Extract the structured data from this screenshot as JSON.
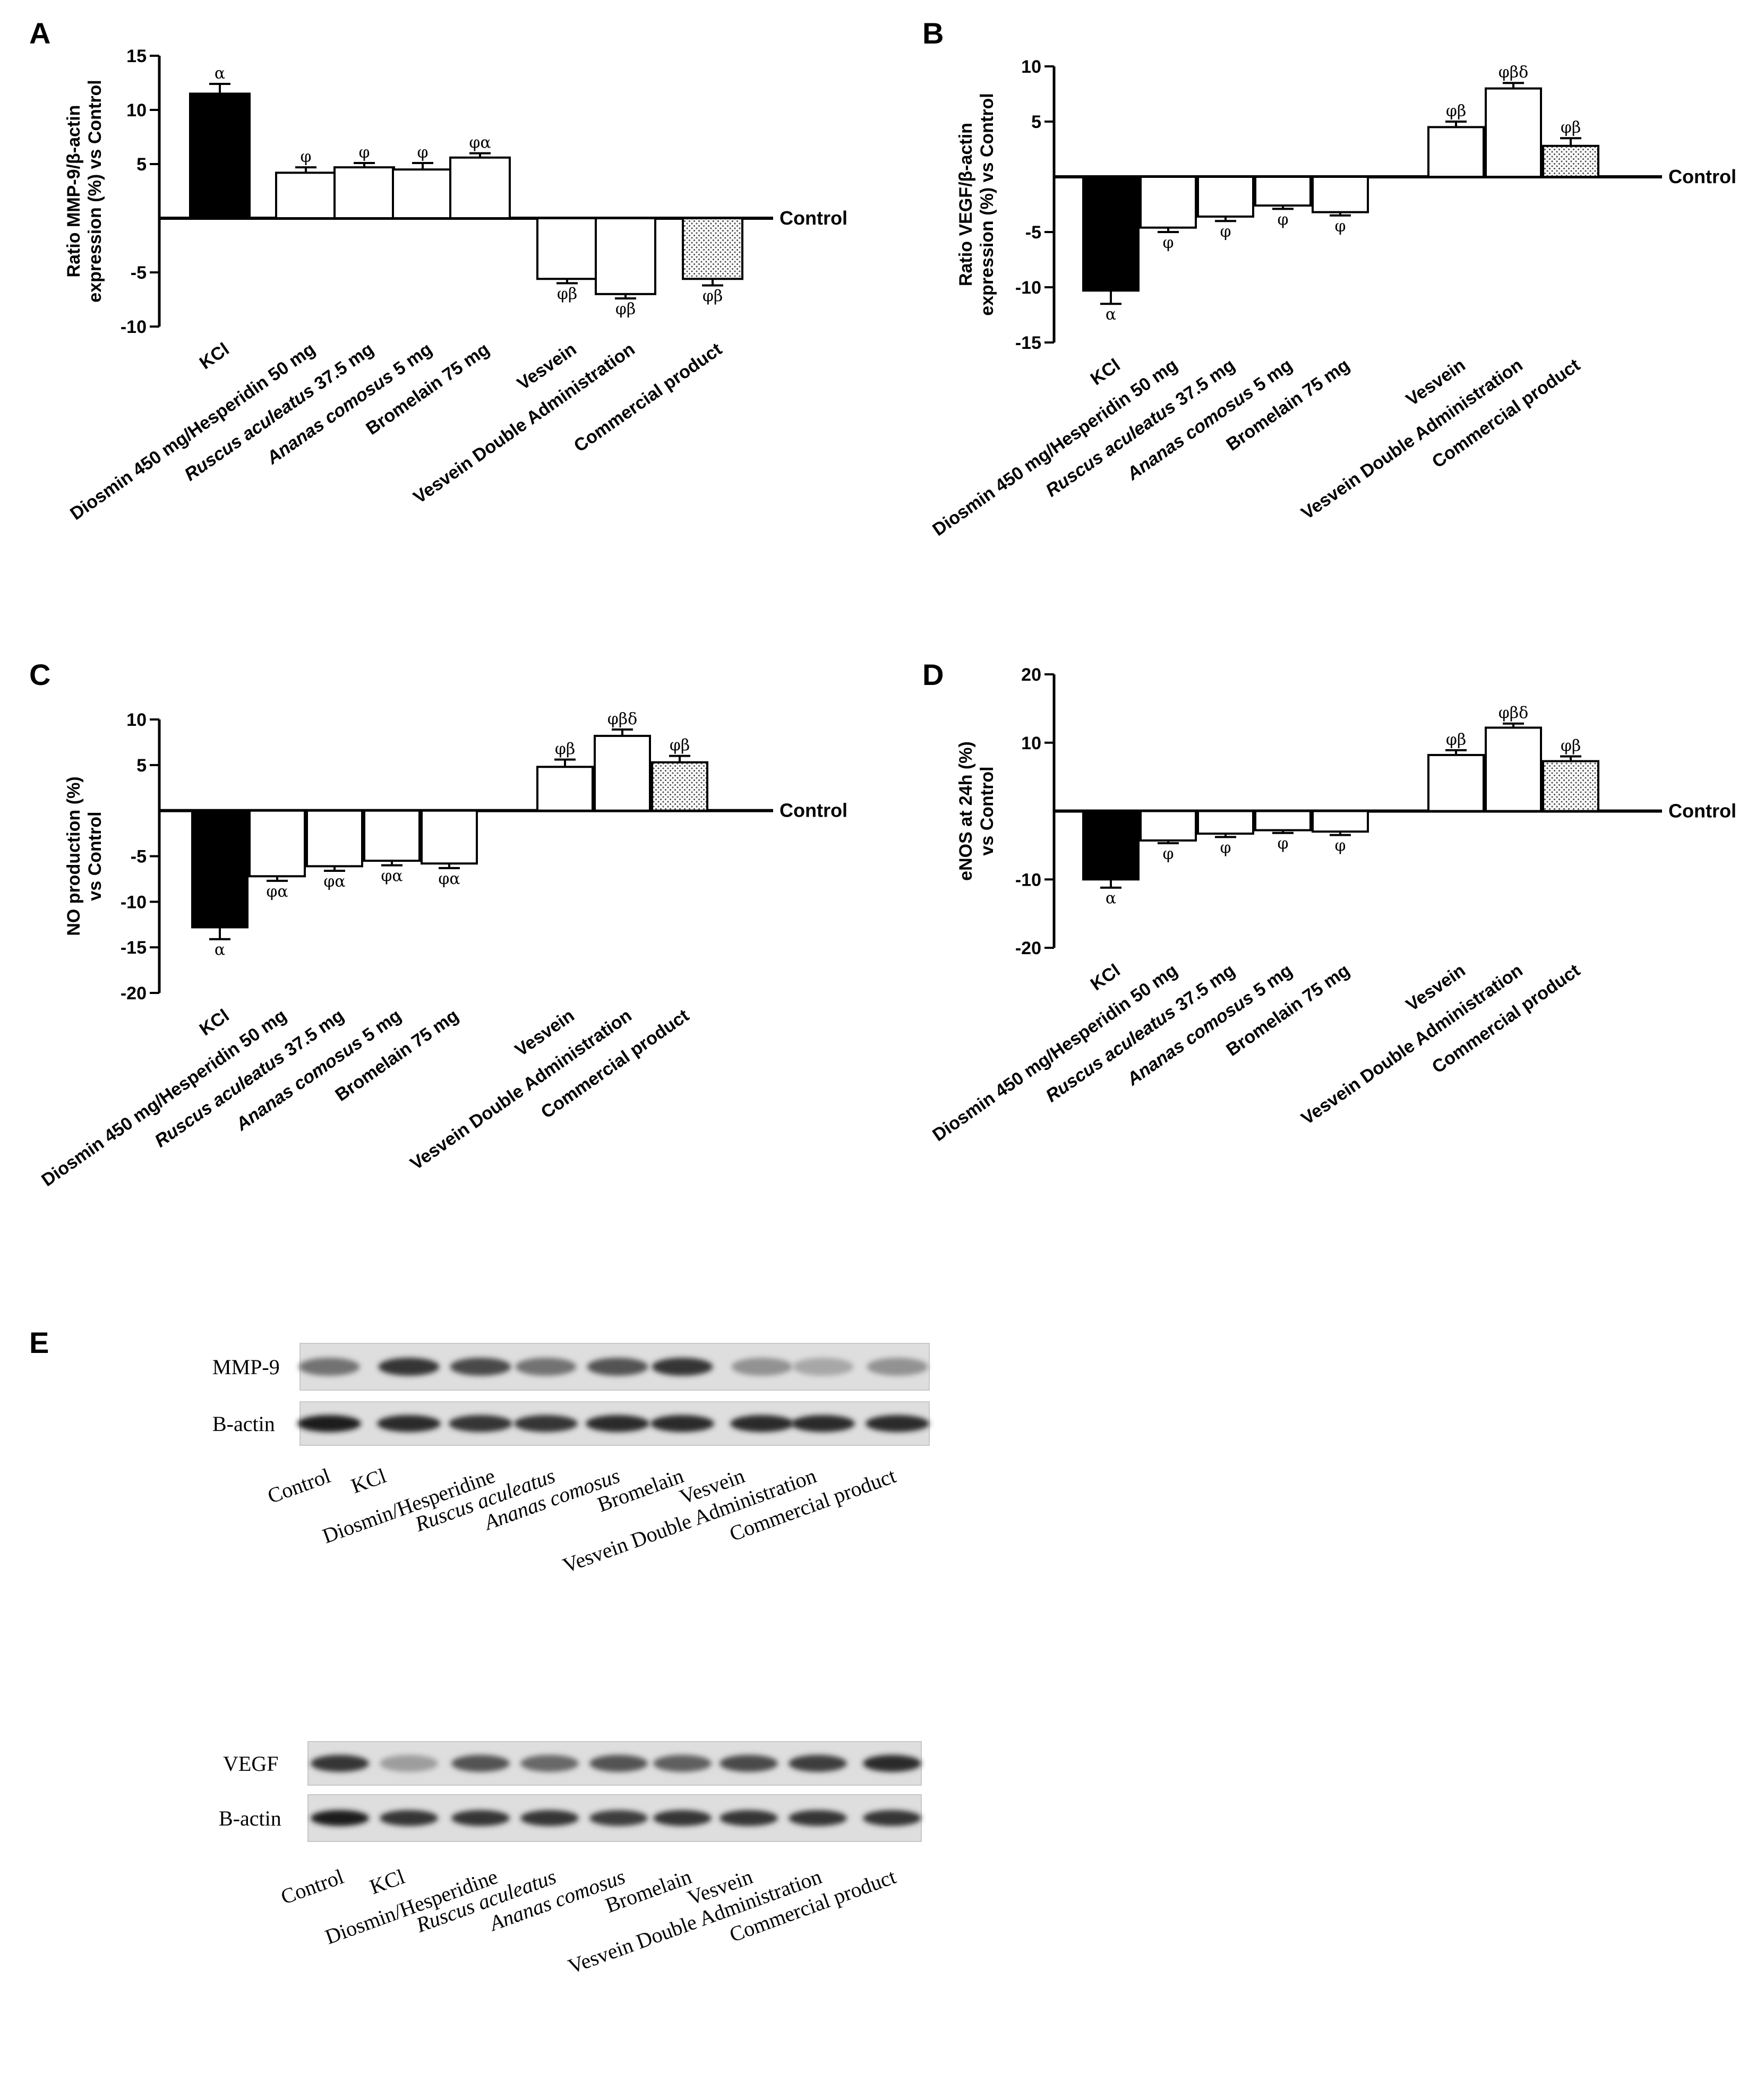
{
  "categories": [
    {
      "text": "KCl",
      "italic": false
    },
    {
      "text": "Diosmin 450 mg/Hesperidin 50 mg",
      "italic": false
    },
    {
      "italic_part": "Ruscus aculeatus",
      "rest": " 37.5 mg"
    },
    {
      "italic_part": "Ananas comosus",
      "rest": " 5 mg"
    },
    {
      "text": "Bromelain 75 mg",
      "italic": false
    },
    {
      "text": "Vesvein",
      "italic": false
    },
    {
      "text": "Vesvein Double Administration",
      "italic": false
    },
    {
      "text": "Commercial product",
      "italic": false
    }
  ],
  "zero_label": "Control",
  "bar_styles": [
    "black",
    "white",
    "white",
    "white",
    "white",
    "white",
    "white",
    "dotted"
  ],
  "colors": {
    "bar_edge": "#000000",
    "black_fill": "#000000",
    "white_fill": "#ffffff",
    "dot": "#555555"
  },
  "chart_data": [
    {
      "panel": "A",
      "type": "bar",
      "ylabel_lines": [
        "Ratio MMP-9/β-actin",
        "expression (%) vs Control"
      ],
      "ylim": [
        -10,
        15
      ],
      "yticks": [
        15,
        10,
        5,
        -5,
        -10
      ],
      "values": [
        11.5,
        4.2,
        4.7,
        4.5,
        5.6,
        -5.6,
        -7.0,
        -5.6
      ],
      "errors": [
        0.9,
        0.5,
        0.4,
        0.6,
        0.4,
        0.4,
        0.4,
        0.6
      ],
      "significance": [
        "α",
        "φ",
        "φ",
        "φ",
        "φα",
        "φβ",
        "φβ",
        "φβ"
      ]
    },
    {
      "panel": "B",
      "type": "bar",
      "ylabel_lines": [
        "Ratio VEGF/β-actin",
        "expression (%) vs Control"
      ],
      "ylim": [
        -15,
        10
      ],
      "yticks": [
        10,
        5,
        -5,
        -10,
        -15
      ],
      "values": [
        -10.3,
        -4.6,
        -3.6,
        -2.6,
        -3.2,
        4.5,
        8.0,
        2.8
      ],
      "errors": [
        1.2,
        0.4,
        0.4,
        0.3,
        0.3,
        0.5,
        0.5,
        0.7
      ],
      "significance": [
        "α",
        "φ",
        "φ",
        "φ",
        "φ",
        "φβ",
        "φβδ",
        "φβ"
      ]
    },
    {
      "panel": "C",
      "type": "bar",
      "ylabel_lines": [
        "NO production (%)",
        "vs Control"
      ],
      "ylim": [
        -20,
        10
      ],
      "yticks": [
        10,
        5,
        -5,
        -10,
        -15,
        -20
      ],
      "values": [
        -12.8,
        -7.2,
        -6.1,
        -5.5,
        -5.8,
        4.8,
        8.2,
        5.3
      ],
      "errors": [
        1.3,
        0.5,
        0.5,
        0.5,
        0.5,
        0.8,
        0.7,
        0.7
      ],
      "significance": [
        "α",
        "φα",
        "φα",
        "φα",
        "φα",
        "φβ",
        "φβδ",
        "φβ"
      ]
    },
    {
      "panel": "D",
      "type": "bar",
      "ylabel_lines": [
        "eNOS at 24h (%)",
        "vs Control"
      ],
      "ylim": [
        -20,
        20
      ],
      "yticks": [
        20,
        10,
        -10,
        -20
      ],
      "values": [
        -10.0,
        -4.3,
        -3.3,
        -2.8,
        -3.0,
        8.2,
        12.2,
        7.3
      ],
      "errors": [
        1.2,
        0.4,
        0.5,
        0.4,
        0.5,
        0.7,
        0.6,
        0.7
      ],
      "significance": [
        "α",
        "φ",
        "φ",
        "φ",
        "φ",
        "φβ",
        "φβδ",
        "φβ"
      ]
    }
  ],
  "panel_e": {
    "letter": "E",
    "lanes": [
      {
        "text": "Control",
        "italic": false
      },
      {
        "text": "KCl",
        "italic": false
      },
      {
        "text": "Diosmin/Hesperidine",
        "italic": false
      },
      {
        "text": "Ruscus aculeatus",
        "italic": true
      },
      {
        "text": "Ananas comosus",
        "italic": true
      },
      {
        "text": "Bromelain",
        "italic": false
      },
      {
        "text": "Vesvein",
        "italic": false
      },
      {
        "text": "Vesvein Double Administration",
        "italic": false
      },
      {
        "text": "Commercial product",
        "italic": false
      }
    ],
    "blot1": {
      "protein": "MMP-9",
      "loading": "B-actin",
      "protein_intensity": [
        0.55,
        0.85,
        0.75,
        0.55,
        0.7,
        0.85,
        0.4,
        0.3,
        0.4
      ],
      "loading_intensity": [
        0.95,
        0.9,
        0.85,
        0.85,
        0.9,
        0.9,
        0.9,
        0.9,
        0.9
      ]
    },
    "blot2": {
      "protein": "VEGF",
      "loading": "B-actin",
      "protein_intensity": [
        0.85,
        0.35,
        0.7,
        0.6,
        0.7,
        0.65,
        0.75,
        0.8,
        0.9
      ],
      "loading_intensity": [
        0.95,
        0.85,
        0.85,
        0.85,
        0.8,
        0.85,
        0.85,
        0.85,
        0.85
      ]
    }
  }
}
